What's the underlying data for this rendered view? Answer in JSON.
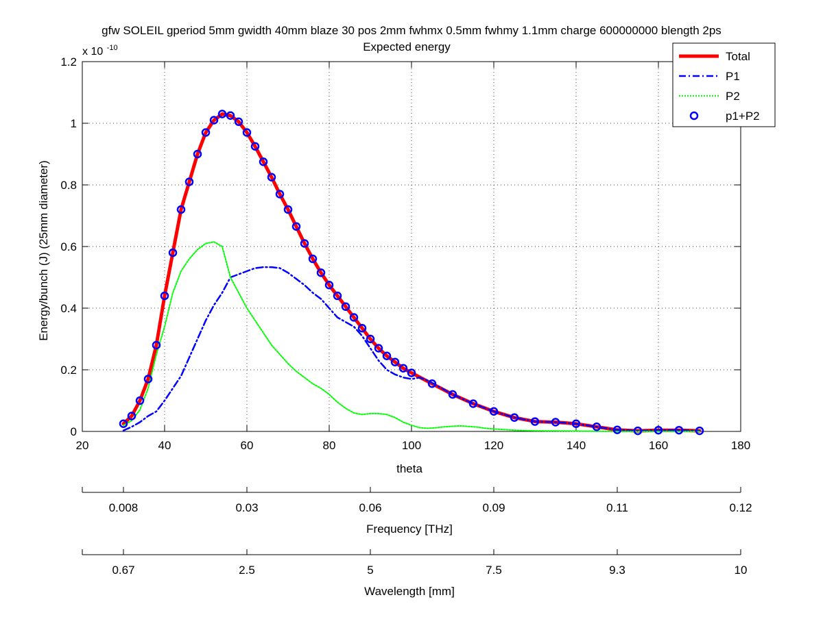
{
  "chart_data": {
    "type": "line",
    "title": "gfw SOLEIL gperiod 5mm gwidth 40mm blaze 30 pos 2mm fwhmx 0.5mm fwhmy 1.1mm charge 600000000 blength 2ps",
    "subtitle": "Expected energy",
    "xlabel": "theta",
    "ylabel": "Energy/bunch (J) (25mm diameter)",
    "y_exponent_label": "x 10",
    "y_exponent_power": "-10",
    "xlim": [
      20,
      180
    ],
    "ylim": [
      0,
      1.2
    ],
    "x_ticks": [
      20,
      40,
      60,
      80,
      100,
      120,
      140,
      160,
      180
    ],
    "y_ticks": [
      0,
      0.2,
      0.4,
      0.6,
      0.8,
      1,
      1.2
    ],
    "x_tick_labels": [
      "20",
      "40",
      "60",
      "80",
      "100",
      "120",
      "140",
      "160",
      "180"
    ],
    "y_tick_labels": [
      "0",
      "0.2",
      "0.4",
      "0.6",
      "0.8",
      "1",
      "1.2"
    ],
    "grid": true,
    "legend_position": "top-right",
    "secondary_axes": [
      {
        "label": "Frequency [THz]",
        "tick_theta": [
          20,
          30,
          60,
          90,
          120,
          150,
          180
        ],
        "tick_labels": [
          "",
          "0.008",
          "0.03",
          "0.06",
          "0.09",
          "0.11",
          "0.12"
        ]
      },
      {
        "label": "Wavelength [mm]",
        "tick_theta": [
          20,
          30,
          60,
          90,
          120,
          150,
          180
        ],
        "tick_labels": [
          "",
          "0.67",
          "2.5",
          "5",
          "7.5",
          "9.3",
          "10"
        ]
      }
    ],
    "series": [
      {
        "name": "Total",
        "color": "#ff0000",
        "style": "solid-thick",
        "x": [
          30,
          32,
          34,
          36,
          38,
          40,
          42,
          44,
          46,
          48,
          50,
          52,
          54,
          56,
          58,
          60,
          62,
          64,
          66,
          68,
          70,
          72,
          74,
          76,
          78,
          80,
          82,
          84,
          86,
          88,
          90,
          92,
          94,
          96,
          98,
          100,
          105,
          110,
          115,
          120,
          125,
          130,
          135,
          140,
          145,
          150,
          155,
          160,
          165,
          170
        ],
        "y": [
          0.025,
          0.05,
          0.1,
          0.17,
          0.28,
          0.44,
          0.58,
          0.72,
          0.81,
          0.9,
          0.97,
          1.01,
          1.03,
          1.025,
          1.005,
          0.97,
          0.925,
          0.875,
          0.825,
          0.77,
          0.72,
          0.665,
          0.61,
          0.56,
          0.515,
          0.475,
          0.44,
          0.405,
          0.37,
          0.335,
          0.3,
          0.27,
          0.245,
          0.225,
          0.205,
          0.19,
          0.155,
          0.12,
          0.09,
          0.065,
          0.045,
          0.032,
          0.03,
          0.025,
          0.015,
          0.005,
          0.002,
          0.004,
          0.004,
          0.002
        ]
      },
      {
        "name": "P1",
        "color": "#0000ff",
        "style": "dashdot",
        "x": [
          30,
          32,
          34,
          36,
          38,
          40,
          42,
          44,
          46,
          48,
          50,
          52,
          54,
          56,
          58,
          60,
          62,
          64,
          66,
          68,
          70,
          72,
          74,
          76,
          78,
          80,
          82,
          84,
          86,
          88,
          90,
          92,
          94,
          96,
          98,
          100,
          102,
          104,
          110,
          115,
          120,
          125,
          130,
          135,
          140,
          145,
          150,
          155,
          160,
          165,
          170
        ],
        "y": [
          0.003,
          0.015,
          0.03,
          0.05,
          0.065,
          0.1,
          0.14,
          0.18,
          0.24,
          0.3,
          0.36,
          0.41,
          0.45,
          0.5,
          0.51,
          0.52,
          0.53,
          0.533,
          0.533,
          0.53,
          0.515,
          0.495,
          0.475,
          0.45,
          0.43,
          0.4,
          0.37,
          0.355,
          0.34,
          0.31,
          0.27,
          0.23,
          0.2,
          0.185,
          0.175,
          0.17,
          0.175,
          0.165,
          0.12,
          0.09,
          0.065,
          0.045,
          0.032,
          0.03,
          0.025,
          0.015,
          0.005,
          0.002,
          0.004,
          0.004,
          0.002
        ]
      },
      {
        "name": "P2",
        "color": "#00ff00",
        "style": "dotted",
        "x": [
          30,
          32,
          34,
          36,
          38,
          40,
          42,
          44,
          46,
          48,
          50,
          52,
          54,
          56,
          58,
          60,
          62,
          64,
          66,
          68,
          70,
          72,
          74,
          76,
          78,
          80,
          82,
          84,
          86,
          88,
          90,
          92,
          94,
          96,
          98,
          100,
          102,
          104,
          106,
          108,
          110,
          112,
          114,
          116,
          118,
          120,
          125,
          130,
          140,
          150,
          160,
          170
        ],
        "y": [
          0.02,
          0.035,
          0.07,
          0.14,
          0.25,
          0.34,
          0.45,
          0.52,
          0.56,
          0.59,
          0.61,
          0.615,
          0.6,
          0.5,
          0.45,
          0.4,
          0.36,
          0.32,
          0.28,
          0.25,
          0.22,
          0.195,
          0.175,
          0.155,
          0.14,
          0.12,
          0.095,
          0.075,
          0.06,
          0.055,
          0.058,
          0.058,
          0.055,
          0.045,
          0.03,
          0.02,
          0.012,
          0.01,
          0.012,
          0.015,
          0.017,
          0.018,
          0.016,
          0.014,
          0.01,
          0.008,
          0.004,
          0.002,
          0.001,
          0.0,
          0.0,
          0.0
        ]
      },
      {
        "name": "p1+P2",
        "color": "#0000ff",
        "style": "circles",
        "x": [
          30,
          32,
          34,
          36,
          38,
          40,
          42,
          44,
          46,
          48,
          50,
          52,
          54,
          56,
          58,
          60,
          62,
          64,
          66,
          68,
          70,
          72,
          74,
          76,
          78,
          80,
          82,
          84,
          86,
          88,
          90,
          92,
          94,
          96,
          98,
          100,
          105,
          110,
          115,
          120,
          125,
          130,
          135,
          140,
          145,
          150,
          155,
          160,
          165,
          170
        ],
        "y": [
          0.025,
          0.05,
          0.1,
          0.17,
          0.28,
          0.44,
          0.58,
          0.72,
          0.81,
          0.9,
          0.97,
          1.01,
          1.03,
          1.025,
          1.005,
          0.97,
          0.925,
          0.875,
          0.825,
          0.77,
          0.72,
          0.665,
          0.61,
          0.56,
          0.515,
          0.475,
          0.44,
          0.405,
          0.37,
          0.335,
          0.3,
          0.27,
          0.245,
          0.225,
          0.205,
          0.19,
          0.155,
          0.12,
          0.09,
          0.065,
          0.045,
          0.032,
          0.03,
          0.025,
          0.015,
          0.005,
          0.002,
          0.004,
          0.004,
          0.002
        ]
      }
    ]
  }
}
